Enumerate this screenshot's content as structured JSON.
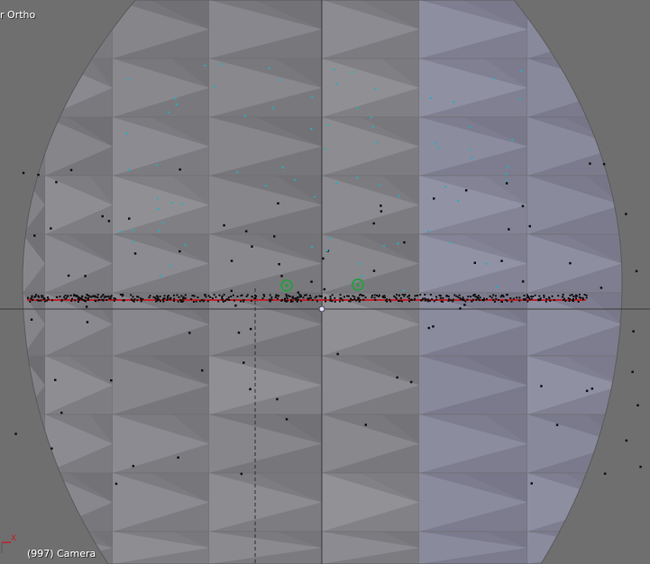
{
  "viewport": {
    "view_label": "r Ortho",
    "frame_label": "(997) Camera",
    "axis_label": "X"
  },
  "icons": {
    "origin": "object-origin-icon",
    "camera": "camera-object-icon",
    "lamp": "lamp-object-icon"
  },
  "colors": {
    "background": "#6f6f6f",
    "sphere_light": "#a3a3ad",
    "sphere_mid": "#8e8e94",
    "sphere_dark": "#7a7a7e",
    "grid_line": "#3a3a3a",
    "x_axis": "#c0202a",
    "particle_dark": "#111111",
    "particle_selected": "#22b0c0",
    "hud_text": "#ffffff"
  }
}
